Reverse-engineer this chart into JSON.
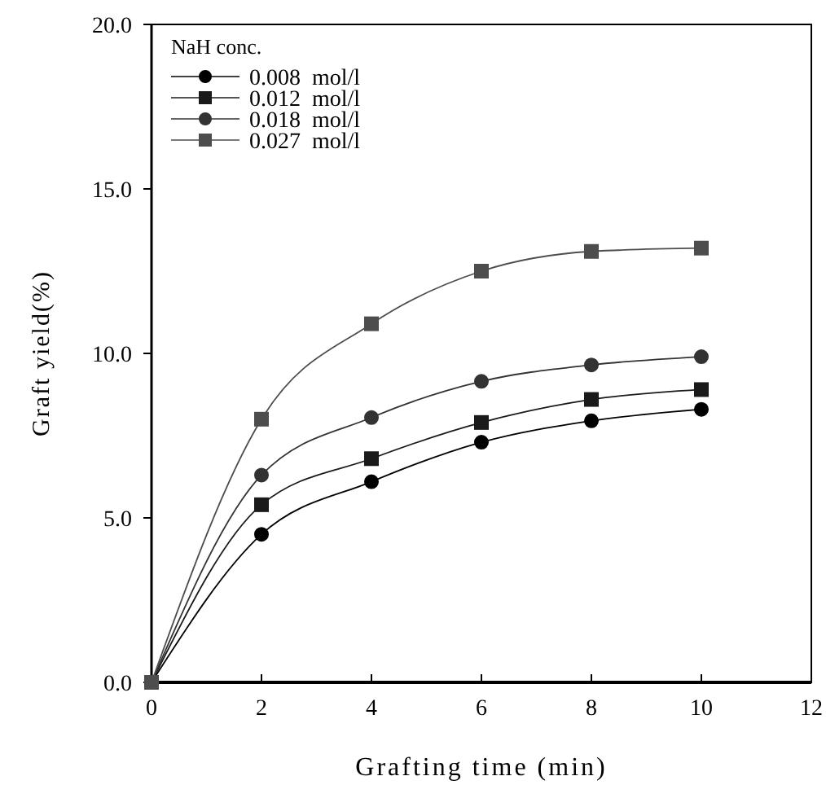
{
  "chart_data": {
    "type": "line",
    "xlabel": "Grafting time (min)",
    "ylabel": "Graft yield(%)",
    "legend_title": "NaH conc.",
    "legend": "top left",
    "grid": false,
    "line_style": "solid",
    "xlim": [
      0,
      12
    ],
    "xticks": [
      0,
      2,
      4,
      6,
      8,
      10,
      12
    ],
    "ylim": [
      0,
      20
    ],
    "yticks": [
      {
        "value": 0,
        "label": "0.0"
      },
      {
        "value": 5,
        "label": "5.0"
      },
      {
        "value": 10,
        "label": "10.0"
      },
      {
        "value": 15,
        "label": "15.0"
      },
      {
        "value": 20,
        "label": "20.0"
      }
    ],
    "x": [
      0,
      2,
      4,
      6,
      8,
      10
    ],
    "series": [
      {
        "name": "0.008  mol/l",
        "color": "#000000",
        "marker": "circle",
        "values": [
          0,
          4.5,
          6.1,
          7.3,
          7.95,
          8.3
        ]
      },
      {
        "name": "0.012  mol/l",
        "color": "#1a1a1a",
        "marker": "square",
        "values": [
          0,
          5.4,
          6.8,
          7.9,
          8.6,
          8.9
        ]
      },
      {
        "name": "0.018  mol/l",
        "color": "#333333",
        "marker": "circle",
        "values": [
          0,
          6.3,
          8.05,
          9.15,
          9.65,
          9.9
        ]
      },
      {
        "name": "0.027  mol/l",
        "color": "#4d4d4d",
        "marker": "square",
        "values": [
          0,
          8.0,
          10.9,
          12.5,
          13.1,
          13.2
        ]
      }
    ]
  }
}
